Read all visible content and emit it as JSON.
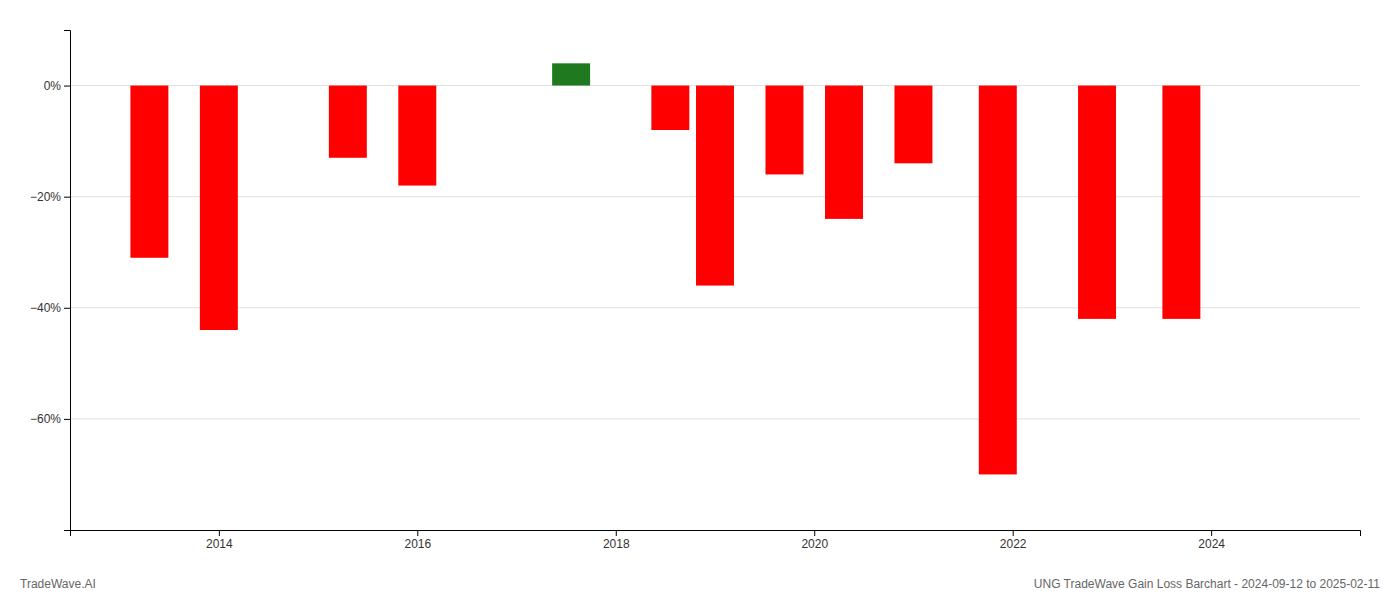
{
  "chart_data": {
    "type": "bar",
    "x": [
      2013.3,
      2014.0,
      2015.3,
      2016.0,
      2017.55,
      2018.55,
      2019.0,
      2019.7,
      2020.3,
      2021.0,
      2021.85,
      2022.85,
      2023.7
    ],
    "values": [
      -31,
      -44,
      -13,
      -18,
      4,
      -8,
      -36,
      -16,
      -24,
      -14,
      -70,
      -42,
      -42
    ],
    "colors": [
      "#ff0000",
      "#ff0000",
      "#ff0000",
      "#ff0000",
      "#1f7a1f",
      "#ff0000",
      "#ff0000",
      "#ff0000",
      "#ff0000",
      "#ff0000",
      "#ff0000",
      "#ff0000",
      "#ff0000"
    ],
    "xlim": [
      2012.5,
      2025.5
    ],
    "xticks": [
      2014,
      2016,
      2018,
      2020,
      2022,
      2024
    ],
    "ylim": [
      -80,
      10
    ],
    "yticks": [
      {
        "value": 0,
        "label": "0%"
      },
      {
        "value": -20,
        "label": "−20%"
      },
      {
        "value": -40,
        "label": "−40%"
      },
      {
        "value": -60,
        "label": "−60%"
      }
    ],
    "grid": true,
    "annotations": [
      "TradeWave.AI",
      "UNG TradeWave Gain Loss Barchart - 2024-09-12 to 2025-02-11"
    ]
  }
}
